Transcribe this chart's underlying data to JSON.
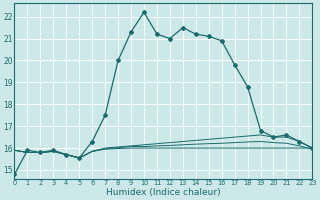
{
  "xlabel": "Humidex (Indice chaleur)",
  "background_color": "#cde8e8",
  "line_color": "#1a6b6b",
  "grid_color": "#b0d4d4",
  "xmin": 0,
  "xmax": 23,
  "ymin": 14.6,
  "ymax": 22.6,
  "yticks": [
    15,
    16,
    17,
    18,
    19,
    20,
    21,
    22
  ],
  "xticks": [
    0,
    1,
    2,
    3,
    4,
    5,
    6,
    7,
    8,
    9,
    10,
    11,
    12,
    13,
    14,
    15,
    16,
    17,
    18,
    19,
    20,
    21,
    22,
    23
  ],
  "main_line_x": [
    0,
    1,
    2,
    3,
    4,
    5,
    6,
    7,
    8,
    9,
    10,
    11,
    12,
    13,
    14,
    15,
    16,
    17,
    18,
    19,
    20,
    21,
    22,
    23
  ],
  "main_line_y": [
    14.8,
    15.9,
    15.8,
    15.9,
    15.7,
    15.55,
    16.3,
    17.5,
    20.0,
    21.3,
    22.2,
    21.2,
    21.0,
    21.5,
    21.2,
    21.1,
    20.9,
    19.8,
    18.8,
    16.8,
    16.5,
    16.6,
    16.3,
    16.0
  ],
  "flat_line1_y": [
    15.9,
    15.8,
    15.8,
    15.85,
    15.7,
    15.55,
    15.85,
    16.0,
    16.05,
    16.1,
    16.15,
    16.2,
    16.25,
    16.3,
    16.35,
    16.4,
    16.45,
    16.5,
    16.55,
    16.6,
    16.5,
    16.5,
    16.3,
    16.0
  ],
  "flat_line2_y": [
    15.9,
    15.8,
    15.8,
    15.85,
    15.7,
    15.55,
    15.85,
    15.97,
    16.02,
    16.07,
    16.07,
    16.1,
    16.12,
    16.15,
    16.18,
    16.2,
    16.22,
    16.25,
    16.28,
    16.3,
    16.25,
    16.22,
    16.1,
    15.95
  ],
  "flat_line3_y": [
    15.9,
    15.8,
    15.8,
    15.85,
    15.7,
    15.55,
    15.85,
    15.95,
    15.98,
    16.0,
    16.0,
    16.0,
    16.0,
    16.0,
    16.0,
    16.0,
    16.0,
    16.0,
    16.0,
    16.0,
    16.0,
    16.0,
    16.0,
    16.0
  ]
}
